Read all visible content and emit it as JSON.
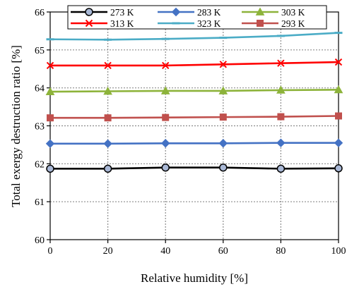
{
  "chart_data": {
    "type": "line",
    "title": "",
    "xlabel": "Relative humidity [%]",
    "ylabel": "Total exergy destruction ratio [%]",
    "x": [
      0,
      20,
      40,
      60,
      80,
      100
    ],
    "xlim": [
      0,
      100
    ],
    "ylim": [
      60,
      66
    ],
    "xticks": [
      "0",
      "20",
      "40",
      "60",
      "80",
      "100"
    ],
    "yticks": [
      "60",
      "61",
      "62",
      "63",
      "64",
      "65",
      "66"
    ],
    "grid": true,
    "legend_position": "top",
    "series": [
      {
        "name": "273 K",
        "color": "#000000",
        "marker": "circle",
        "marker_fill": "#a9b8d6",
        "values": [
          61.87,
          61.87,
          61.9,
          61.9,
          61.87,
          61.88
        ]
      },
      {
        "name": "283 K",
        "color": "#4472c4",
        "marker": "diamond",
        "marker_fill": "#4472c4",
        "values": [
          62.53,
          62.53,
          62.54,
          62.54,
          62.55,
          62.55
        ]
      },
      {
        "name": "303 K",
        "color": "#8db33a",
        "marker": "triangle",
        "marker_fill": "#8db33a",
        "values": [
          63.9,
          63.91,
          63.92,
          63.92,
          63.94,
          63.95
        ]
      },
      {
        "name": "313 K",
        "color": "#ff0000",
        "marker": "x",
        "marker_fill": "#ff0000",
        "values": [
          64.59,
          64.59,
          64.59,
          64.62,
          64.65,
          64.68
        ]
      },
      {
        "name": "323 K",
        "color": "#4bacc6",
        "marker": "dash",
        "marker_fill": "#4bacc6",
        "values": [
          65.28,
          65.27,
          65.29,
          65.32,
          65.37,
          65.45
        ]
      },
      {
        "name": "293 K",
        "color": "#c0504d",
        "marker": "square",
        "marker_fill": "#c0504d",
        "values": [
          63.21,
          63.21,
          63.22,
          63.23,
          63.24,
          63.26
        ]
      }
    ]
  }
}
